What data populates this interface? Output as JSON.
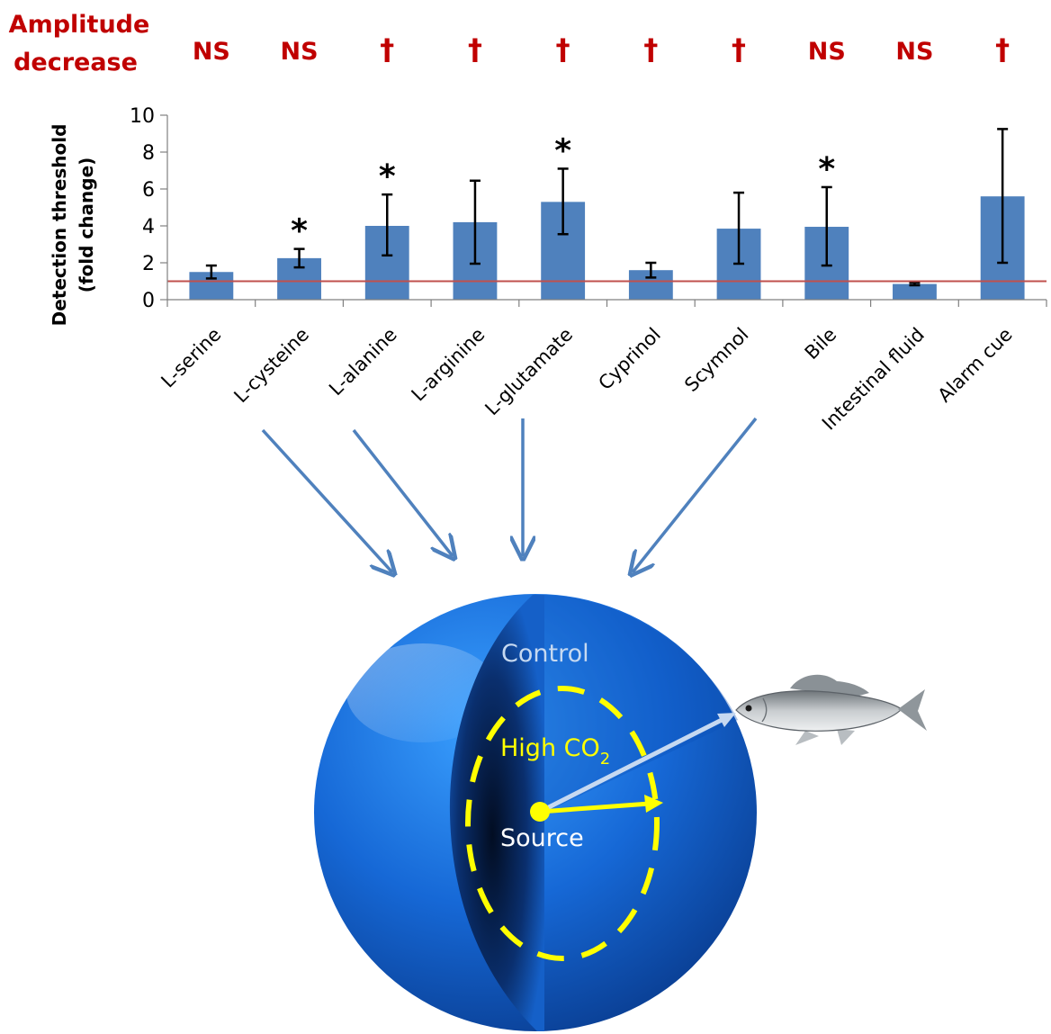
{
  "amplitude": {
    "title_line1": "Amplitude",
    "title_line2": "decrease",
    "markers": [
      "NS",
      "NS",
      "†",
      "†",
      "†",
      "†",
      "†",
      "NS",
      "NS",
      "†"
    ],
    "color": "#c00000"
  },
  "chart_data": {
    "type": "bar",
    "categories": [
      "L-serine",
      "L-cysteine",
      "L-alanine",
      "L-arginine",
      "L-glutamate",
      "Cyprinol",
      "Scymnol",
      "Bile",
      "Intestinal fluid",
      "Alarm cue"
    ],
    "values": [
      1.5,
      2.25,
      4.0,
      4.2,
      5.3,
      1.6,
      3.85,
      3.95,
      0.85,
      5.6
    ],
    "error_low": [
      1.15,
      1.75,
      2.4,
      1.95,
      3.55,
      1.2,
      1.95,
      1.85,
      0.78,
      2.0
    ],
    "error_high": [
      1.85,
      2.75,
      5.7,
      6.45,
      7.1,
      2.0,
      5.8,
      6.1,
      0.92,
      9.25
    ],
    "significance": [
      "",
      "*",
      "*",
      "",
      "*",
      "",
      "",
      "*",
      "",
      ""
    ],
    "ylabel_line1": "Detection threshold",
    "ylabel_line2": "(fold change)",
    "ylim": [
      0,
      10
    ],
    "yticks": [
      "0",
      "2",
      "4",
      "6",
      "8",
      "10"
    ],
    "reference_line": 1,
    "bar_color": "#4f81bd",
    "reference_color": "#c0504d",
    "grid": false
  },
  "diagram": {
    "control_label": "Control",
    "high_label": "High CO",
    "high_subscript": "2",
    "source_label": "Source",
    "sphere_color": "#1a75e8",
    "high_color": "#ffff00",
    "arrow_color": "#4f81bd"
  }
}
